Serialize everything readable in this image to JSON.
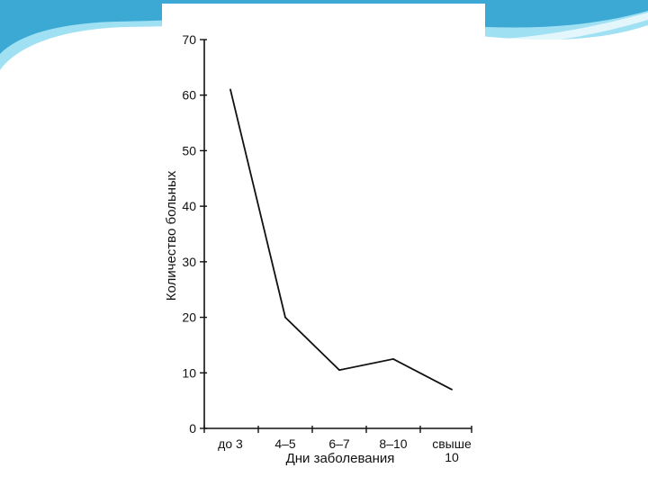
{
  "theme": {
    "wave_color_light": "#7fd3ec",
    "wave_color_dark": "#1f8fbf",
    "ink": "#111111"
  },
  "chart_data": {
    "type": "line",
    "title": "",
    "xlabel": "Дни заболевания",
    "ylabel": "Количество больных",
    "categories": [
      "до 3",
      "4–5",
      "6–7",
      "8–10",
      "свыше 10"
    ],
    "category_lines": [
      [
        "до 3"
      ],
      [
        "4–5"
      ],
      [
        "6–7"
      ],
      [
        "8–10"
      ],
      [
        "свыше",
        "10"
      ]
    ],
    "series": [
      {
        "values": [
          61,
          20,
          10.5,
          12.5,
          7
        ]
      }
    ],
    "ylim": [
      0,
      70
    ],
    "yticks": [
      "0",
      "10",
      "20",
      "30",
      "40",
      "50",
      "60",
      "70"
    ],
    "grid": false,
    "legend": "none"
  }
}
